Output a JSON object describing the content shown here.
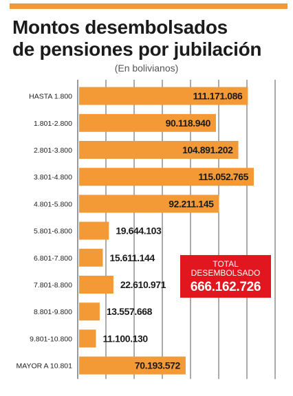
{
  "header": {
    "title_line1": "Montos desembolsados",
    "title_line2": "de pensiones por jubilación",
    "subtitle": "(En bolivianos)"
  },
  "total": {
    "label_line1": "TOTAL",
    "label_line2": "DESEMBOLSADO",
    "value": "666.162.726"
  },
  "colors": {
    "bar": "#f39a36",
    "accent_rule": "#f39a36",
    "total_box": "#e1161e",
    "grid": "#555555"
  },
  "chart_data": {
    "type": "bar",
    "orientation": "horizontal",
    "title": "Montos desembolsados de pensiones por jubilación",
    "subtitle": "(En bolivianos)",
    "categories": [
      "HASTA 1.800",
      "1.801-2.800",
      "2.801-3.800",
      "3.801-4.800",
      "4.801-5.800",
      "5.801-6.800",
      "6.801-7.800",
      "7.801-8.800",
      "8.801-9.800",
      "9.801-10.800",
      "MAYOR A 10.801"
    ],
    "values": [
      111171086,
      90118940,
      104891202,
      115052765,
      92211145,
      19644103,
      15611144,
      22610971,
      13557668,
      11100130,
      70193572
    ],
    "value_labels": [
      "111.171.086",
      "90.118.940",
      "104.891.202",
      "115.052.765",
      "92.211.145",
      "19.644.103",
      "15.611.144",
      "22.610.971",
      "13.557.668",
      "11.100.130",
      "70.193.572"
    ],
    "xlim": [
      0,
      130000000
    ],
    "grid": true,
    "xlabel": "",
    "ylabel": ""
  }
}
